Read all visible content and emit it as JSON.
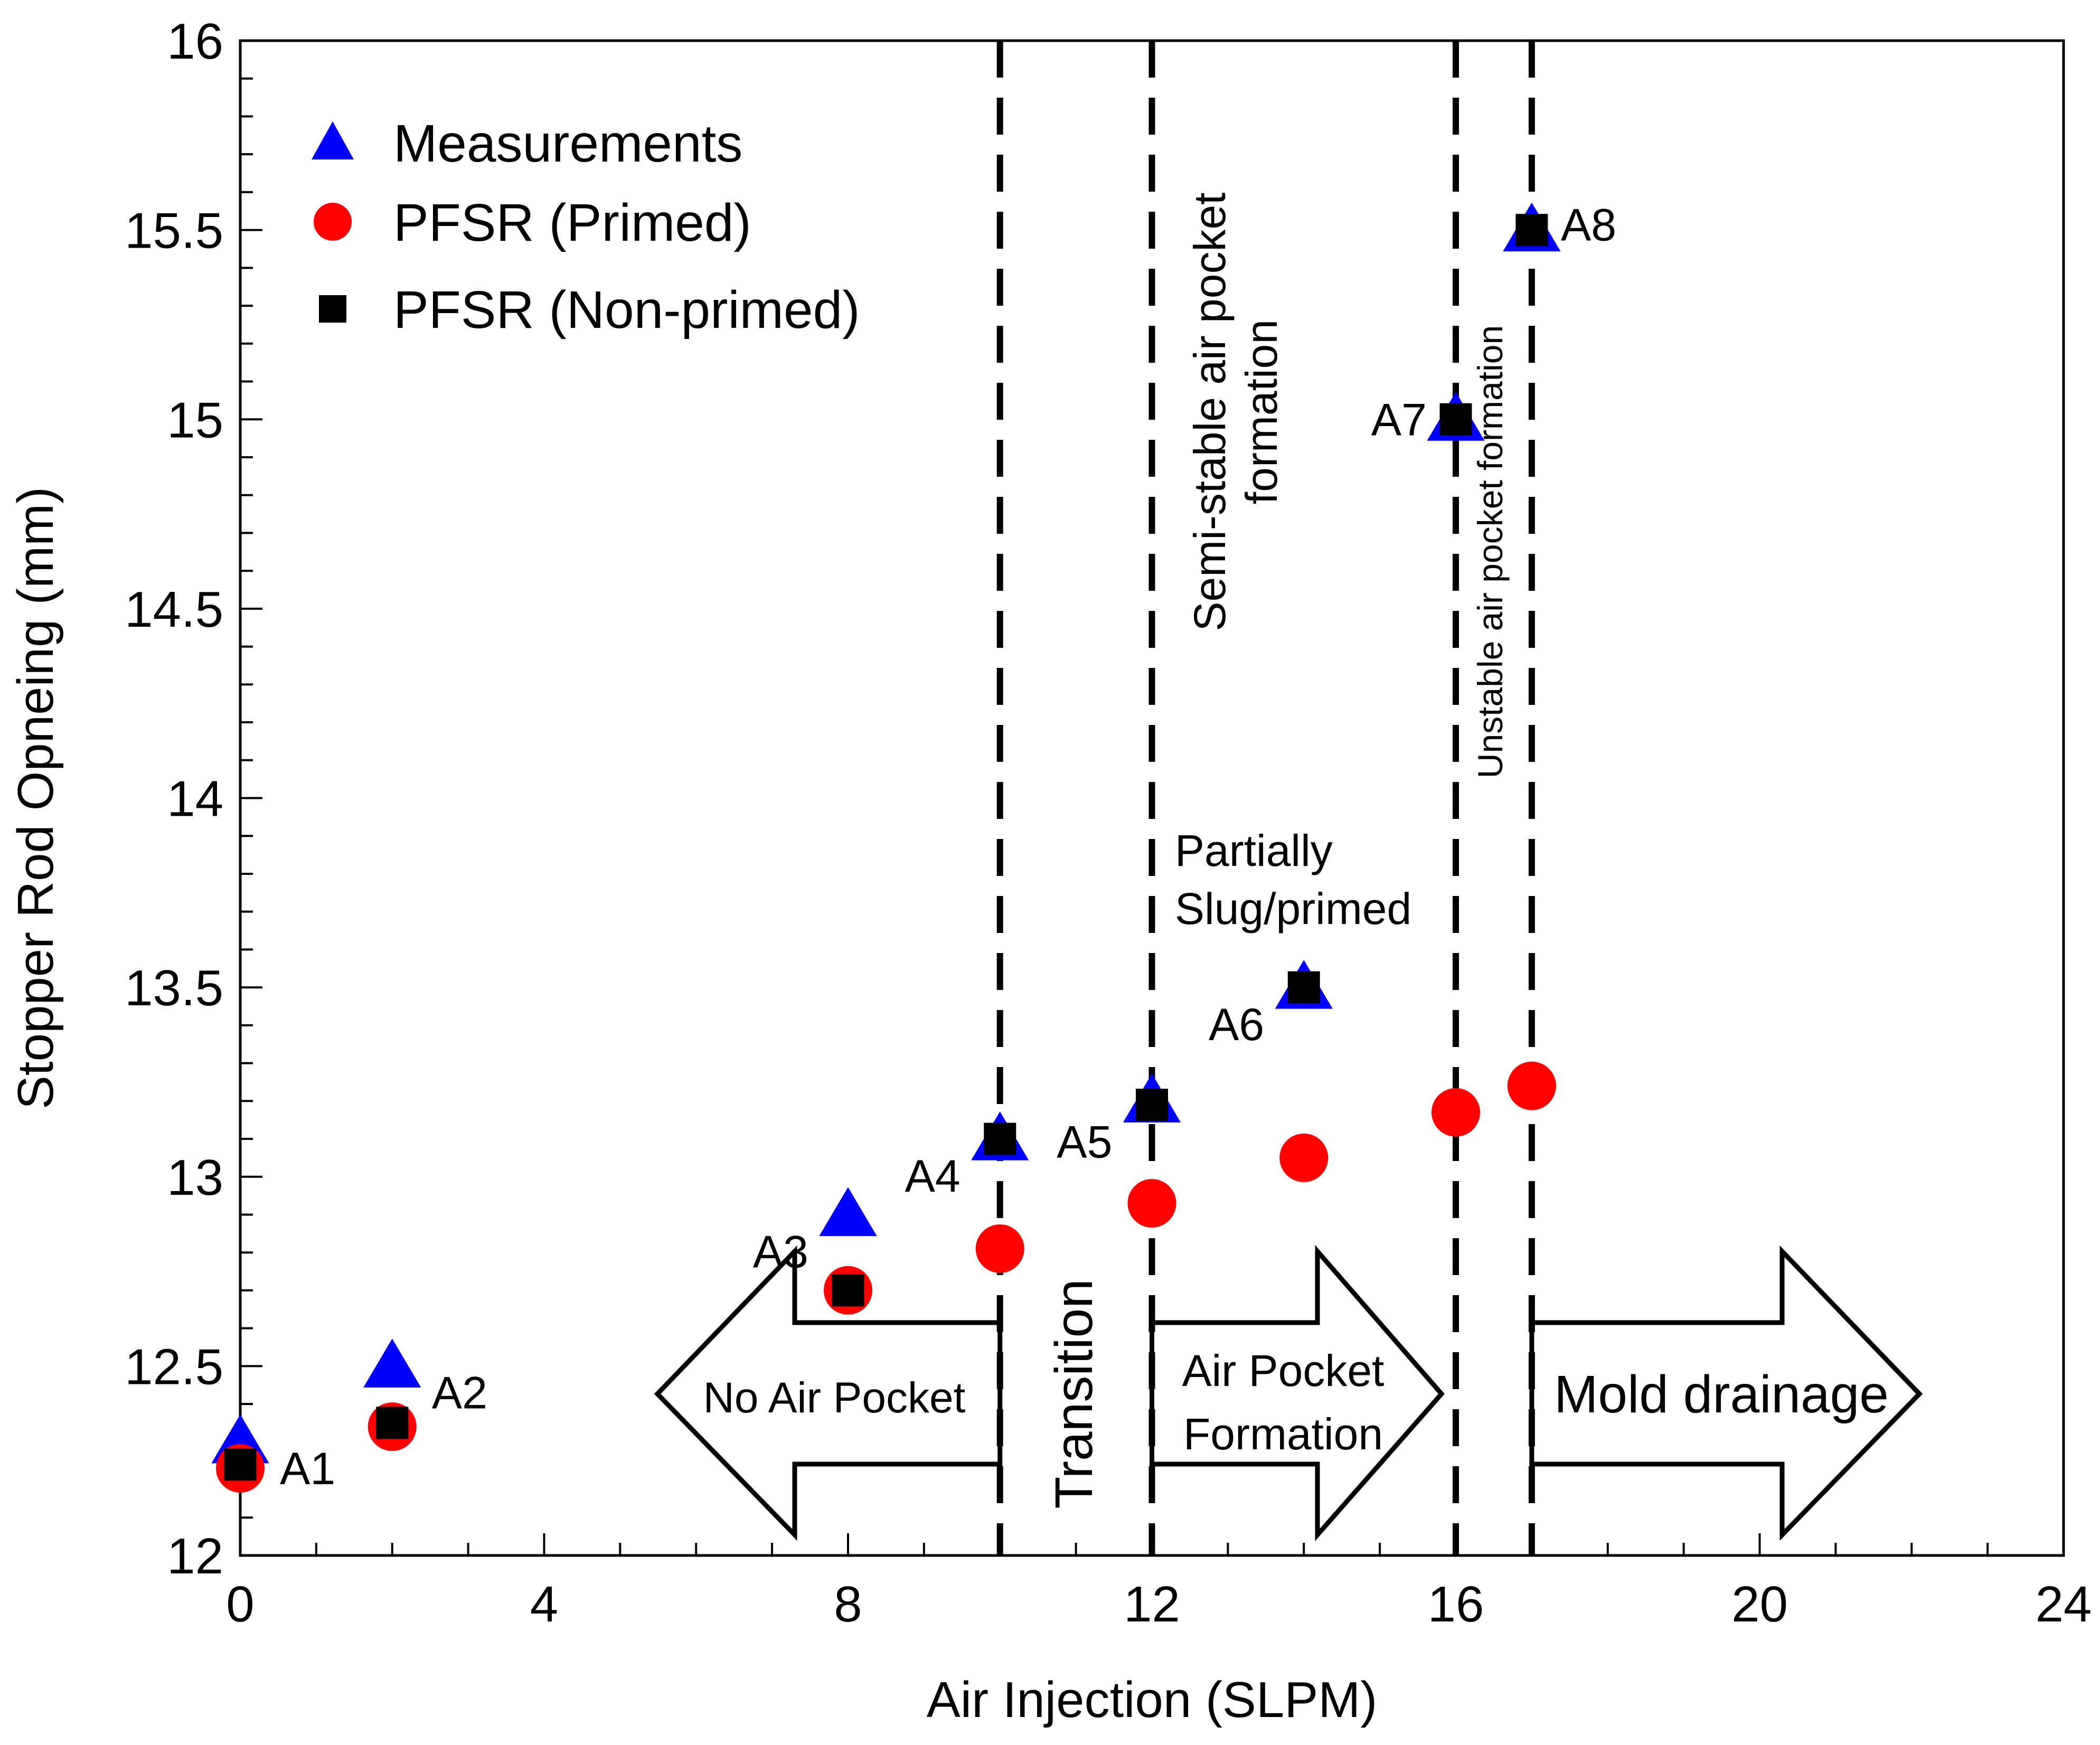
{
  "chart_data": {
    "type": "scatter",
    "title": "",
    "xlabel": "Air Injection (SLPM)",
    "ylabel": "Stopper Rod Opneing (mm)",
    "xlim": [
      0,
      24
    ],
    "ylim": [
      12,
      16
    ],
    "xticks": [
      0,
      4,
      8,
      12,
      16,
      20,
      24
    ],
    "yticks": [
      12,
      12.5,
      13,
      13.5,
      14,
      14.5,
      15,
      15.5,
      16
    ],
    "ytick_labels": [
      "12",
      "12.5",
      "13",
      "13.5",
      "14",
      "14.5",
      "15",
      "15.5",
      "16"
    ],
    "xminor_step": 1,
    "yminor_step": 0.1,
    "grid": false,
    "legend_position": "top-left",
    "series": [
      {
        "name": "Measurements",
        "marker": "triangle",
        "color": "#0000ff",
        "x": [
          0,
          2,
          8,
          10,
          12,
          14,
          16,
          17
        ],
        "y": [
          12.3,
          12.5,
          12.9,
          13.1,
          13.2,
          13.5,
          15.0,
          15.5
        ]
      },
      {
        "name": "PFSR (Primed)",
        "marker": "circle",
        "color": "#ff0000",
        "x": [
          0,
          2,
          8,
          10,
          12,
          14,
          16,
          17
        ],
        "y": [
          12.23,
          12.34,
          12.7,
          12.81,
          12.93,
          13.05,
          13.17,
          13.24
        ]
      },
      {
        "name": "PFSR (Non-primed)",
        "marker": "square",
        "color": "#000000",
        "x": [
          0,
          2,
          8,
          10,
          12,
          14,
          16,
          17
        ],
        "y": [
          12.24,
          12.35,
          12.7,
          13.1,
          13.19,
          13.5,
          15.0,
          15.5
        ]
      }
    ],
    "point_labels": [
      {
        "text": "A1",
        "x": 0,
        "y": 12.3,
        "anchor": "right-below"
      },
      {
        "text": "A2",
        "x": 2,
        "y": 12.5,
        "anchor": "right-below"
      },
      {
        "text": "A3",
        "x": 8,
        "y": 12.9,
        "anchor": "left-below"
      },
      {
        "text": "A4",
        "x": 10,
        "y": 13.1,
        "anchor": "left-below"
      },
      {
        "text": "A5",
        "x": 12,
        "y": 13.19,
        "anchor": "left-below"
      },
      {
        "text": "A6",
        "x": 14,
        "y": 13.5,
        "anchor": "left-below"
      },
      {
        "text": "A7",
        "x": 16,
        "y": 15.0,
        "anchor": "left"
      },
      {
        "text": "A8",
        "x": 17,
        "y": 15.5,
        "anchor": "right"
      }
    ],
    "vlines": [
      10,
      12,
      16,
      17
    ],
    "annotations": {
      "semi_stable_line1": "Semi-stable air pocket",
      "semi_stable_line2": "formation",
      "unstable": "Unstable air pocket formation",
      "partially_line1": "Partially",
      "partially_line2": "Slug/primed",
      "no_air_pocket": "No Air Pocket",
      "transition": "Transition",
      "air_pocket_line1": "Air Pocket",
      "air_pocket_line2": "Formation",
      "mold_drainage": "Mold drainage"
    }
  }
}
